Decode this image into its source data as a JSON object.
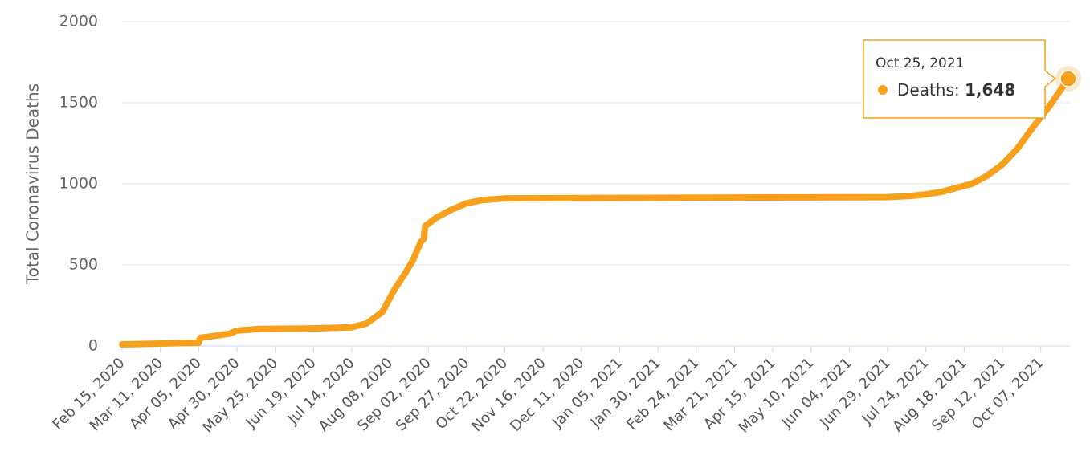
{
  "chart_data": {
    "type": "line",
    "y_label": "Total Coronavirus Deaths",
    "x": [
      "Feb 15, 2020",
      "Apr 05, 2020",
      "Apr 06, 2020",
      "Apr 25, 2020",
      "Apr 30, 2020",
      "May 15, 2020",
      "Jun 19, 2020",
      "Jul 14, 2020",
      "Jul 24, 2020",
      "Aug 03, 2020",
      "Aug 11, 2020",
      "Aug 18, 2020",
      "Aug 23, 2020",
      "Aug 28, 2020",
      "Aug 30, 2020",
      "Aug 31, 2020",
      "Sep 07, 2020",
      "Sep 17, 2020",
      "Sep 27, 2020",
      "Oct 07, 2020",
      "Oct 22, 2020",
      "Dec 11, 2020",
      "Mar 21, 2021",
      "Jun 29, 2021",
      "Jul 14, 2021",
      "Jul 24, 2021",
      "Aug 03, 2021",
      "Aug 13, 2021",
      "Aug 23, 2021",
      "Sep 02, 2021",
      "Sep 12, 2021",
      "Sep 22, 2021",
      "Oct 02, 2021",
      "Oct 12, 2021",
      "Oct 25, 2021"
    ],
    "series": [
      {
        "name": "Deaths",
        "color": "#f7a01c",
        "values": [
          10,
          20,
          50,
          75,
          95,
          105,
          108,
          115,
          140,
          210,
          350,
          450,
          530,
          640,
          660,
          740,
          790,
          840,
          880,
          900,
          910,
          912,
          915,
          918,
          925,
          935,
          950,
          975,
          1000,
          1050,
          1120,
          1220,
          1350,
          1470,
          1648
        ],
        "value_labels": [
          null,
          null,
          null,
          null,
          null,
          null,
          null,
          null,
          null,
          null,
          null,
          null,
          null,
          null,
          null,
          null,
          null,
          null,
          null,
          null,
          null,
          null,
          null,
          null,
          null,
          null,
          null,
          null,
          null,
          null,
          null,
          null,
          null,
          null,
          "1,648"
        ]
      }
    ],
    "xlim": [
      "Feb 15, 2020",
      "Oct 25, 2021"
    ],
    "xticks": [
      "Feb 15, 2020",
      "Mar 11, 2020",
      "Apr 05, 2020",
      "Apr 30, 2020",
      "May 25, 2020",
      "Jun 19, 2020",
      "Jul 14, 2020",
      "Aug 08, 2020",
      "Sep 02, 2020",
      "Sep 27, 2020",
      "Oct 22, 2020",
      "Nov 16, 2020",
      "Dec 11, 2020",
      "Jan 05, 2021",
      "Jan 30, 2021",
      "Feb 24, 2021",
      "Mar 21, 2021",
      "Apr 15, 2021",
      "May 10, 2021",
      "Jun 04, 2021",
      "Jun 29, 2021",
      "Jul 24, 2021",
      "Aug 18, 2021",
      "Sep 12, 2021",
      "Oct 07, 2021"
    ],
    "ylim": [
      0,
      2000
    ],
    "yticks": [
      0,
      500,
      1000,
      1500,
      2000
    ],
    "grid": true
  }
}
